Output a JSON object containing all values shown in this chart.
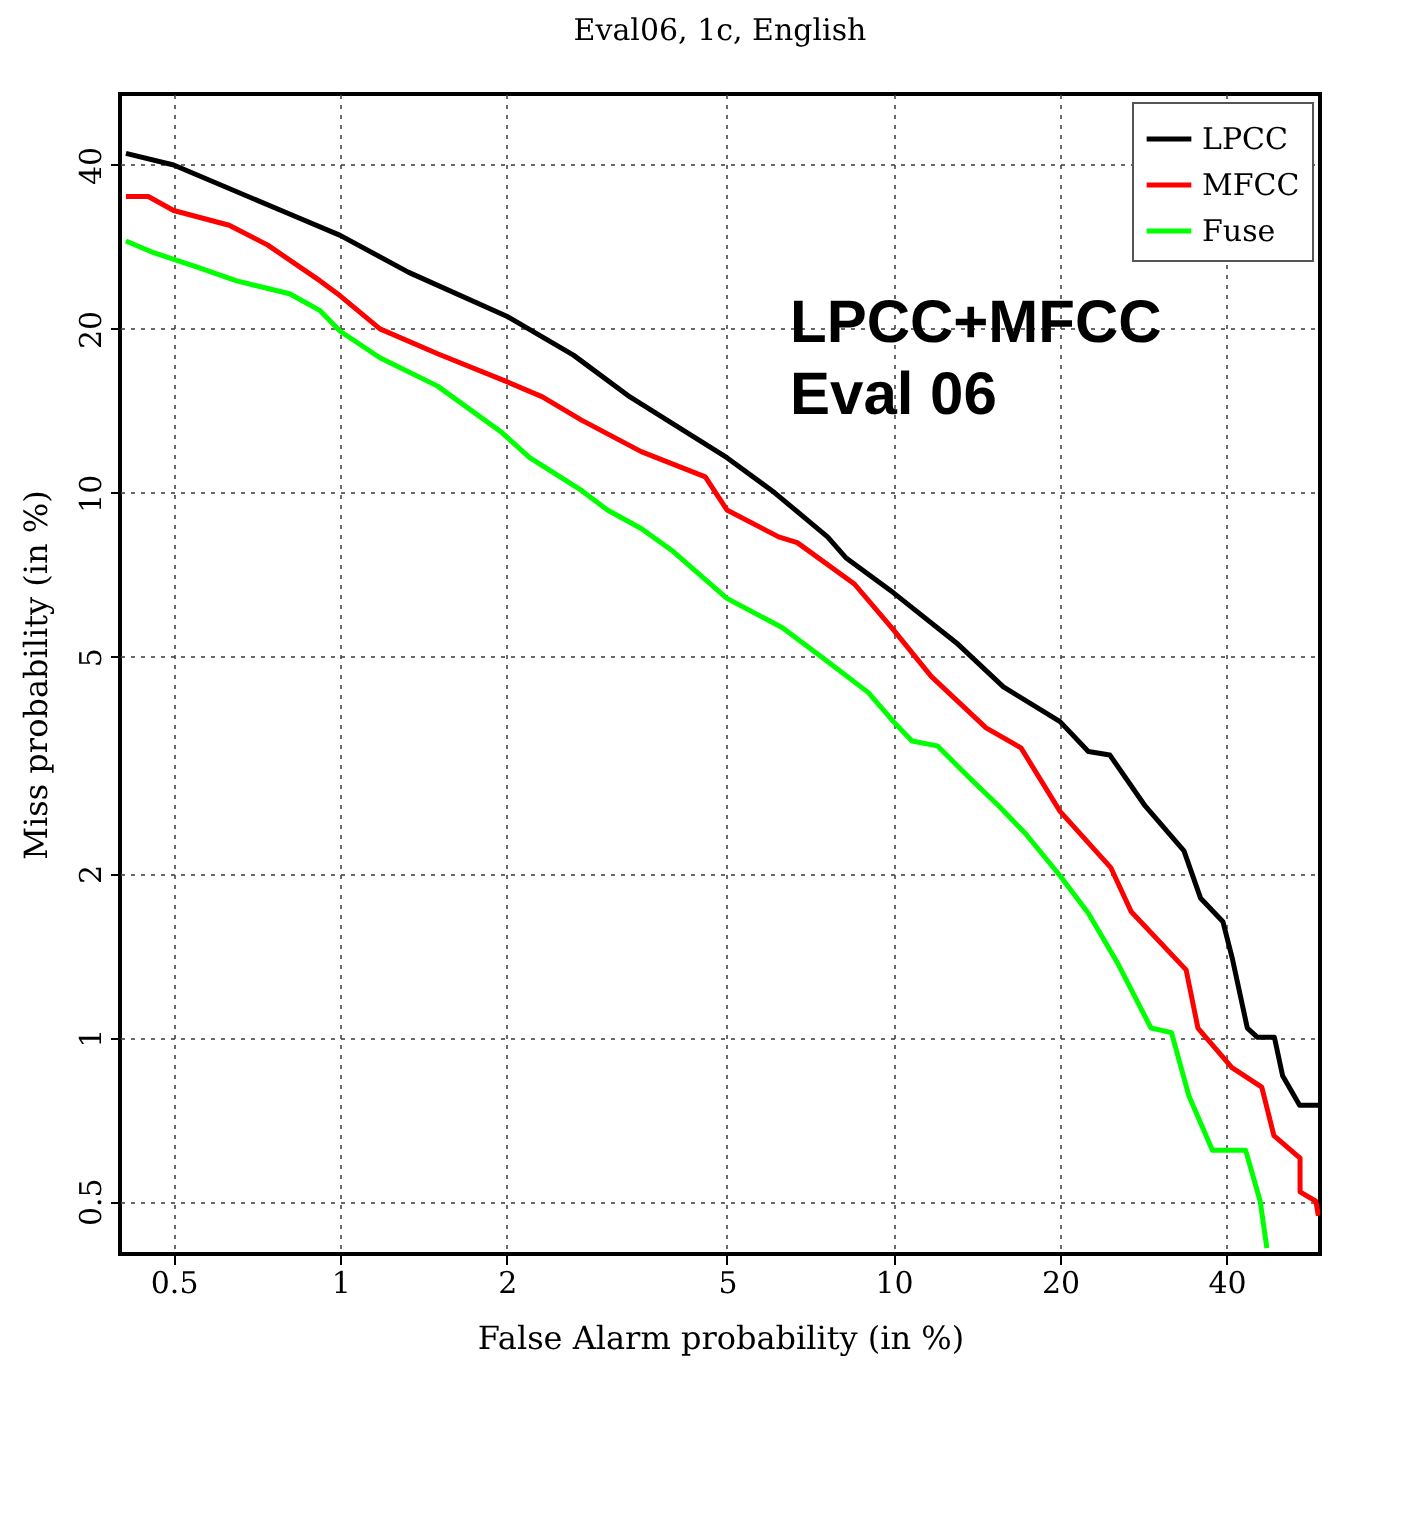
{
  "chart_data": {
    "type": "line",
    "title": "Eval06, 1c, English",
    "xlabel": "False Alarm probability (in %)",
    "ylabel": "Miss probability (in %)",
    "annotations": [
      "LPCC+MFCC\nEval 06"
    ],
    "log": "xy",
    "xlim": [
      0.4,
      59
    ],
    "ylim": [
      0.4,
      54
    ],
    "xticks": [
      0.5,
      1,
      2,
      5,
      10,
      20,
      40
    ],
    "yticks": [
      0.5,
      1,
      2,
      5,
      10,
      20,
      40
    ],
    "grid": true,
    "legend": "top right",
    "marker": "none",
    "line_style": "solid",
    "series": [
      {
        "name": "LPCC",
        "color": "#000000",
        "x": [
          0.41,
          0.5,
          0.81,
          1,
          1.33,
          2,
          2.64,
          3.34,
          5,
          6.1,
          7.6,
          8.2,
          10,
          13,
          15.8,
          20,
          22.5,
          24.6,
          28.5,
          33.5,
          35.9,
          39.4,
          41,
          43.6,
          45.5,
          48.8,
          50.5,
          54.2,
          58.6
        ],
        "values": [
          42,
          40,
          32.5,
          29.7,
          25.4,
          21.1,
          17.9,
          15,
          11.6,
          10,
          8.3,
          7.6,
          6.55,
          5.3,
          4.4,
          3.8,
          3.35,
          3.3,
          2.66,
          2.2,
          1.8,
          1.63,
          1.39,
          1.04,
          1,
          1,
          0.85,
          0.75,
          0.75
        ]
      },
      {
        "name": "MFCC",
        "color": "#ff0000",
        "x": [
          0.41,
          0.45,
          0.5,
          0.63,
          0.74,
          0.92,
          1,
          1.18,
          1.5,
          2,
          2.32,
          2.73,
          3.5,
          4.57,
          5,
          6.2,
          6.7,
          8.5,
          10,
          11.7,
          14.7,
          17,
          20,
          24.7,
          26.9,
          33.8,
          35.5,
          40.9,
          46.3,
          48.7,
          54.3,
          54.3,
          58,
          58.6
        ],
        "values": [
          35,
          35,
          33,
          31,
          28.5,
          24.5,
          23,
          20,
          18,
          16,
          15,
          13.6,
          11.9,
          10.7,
          9.3,
          8.3,
          8.1,
          6.8,
          5.6,
          4.6,
          3.7,
          3.4,
          2.6,
          2.05,
          1.7,
          1.33,
          1.04,
          0.88,
          0.81,
          0.66,
          0.6,
          0.52,
          0.5,
          0.47
        ]
      },
      {
        "name": "Fuse",
        "color": "#00ff00",
        "x": [
          0.41,
          0.46,
          0.55,
          0.65,
          0.81,
          0.92,
          1,
          1.18,
          1.5,
          1.96,
          2.2,
          2.73,
          3.04,
          3.5,
          4,
          5,
          6.3,
          7.6,
          9,
          10,
          10.8,
          12,
          13.7,
          15.5,
          17.3,
          20,
          22.5,
          25.5,
          29.2,
          31.8,
          34.2,
          37.7,
          43.3,
          46,
          47.3
        ],
        "values": [
          29,
          27.6,
          26,
          24.5,
          23.2,
          21.6,
          19.8,
          17.7,
          15.7,
          12.9,
          11.6,
          10.1,
          9.3,
          8.6,
          7.8,
          6.4,
          5.65,
          4.9,
          4.3,
          3.8,
          3.5,
          3.43,
          3,
          2.66,
          2.37,
          1.98,
          1.69,
          1.36,
          1.04,
          1.02,
          0.78,
          0.62,
          0.62,
          0.5,
          0.41
        ]
      }
    ]
  }
}
